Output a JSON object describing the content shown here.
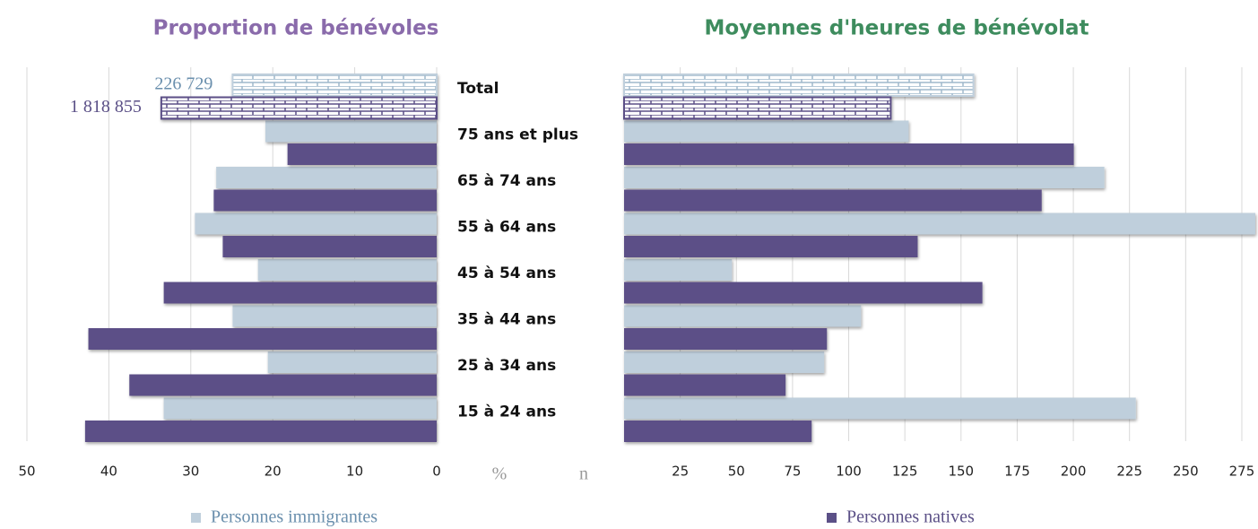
{
  "chart_data": [
    {
      "type": "bar",
      "orientation": "horizontal",
      "title": "Proportion de bénévoles",
      "title_color": "#8a6bab",
      "x_label": "%",
      "x_reversed": true,
      "xlim": [
        0,
        50
      ],
      "xticks": [
        50,
        40,
        30,
        20,
        10,
        0
      ],
      "grid": true,
      "categories": [
        "Total",
        "75 ans et plus",
        "65 à 74 ans",
        "55 à 64 ans",
        "45 à 54 ans",
        "35 à 44 ans",
        "25 à 34 ans",
        "15 à 24 ans"
      ],
      "pattern_index": 0,
      "annotations": [
        "226 729",
        "1 818 855"
      ],
      "series": [
        {
          "name": "Personnes immigrantes",
          "color": "#bfcfdc",
          "values": [
            24.9,
            20.9,
            26.9,
            29.5,
            21.8,
            24.9,
            20.6,
            33.3
          ]
        },
        {
          "name": "Personnes natives",
          "color": "#5b5087",
          "values": [
            33.6,
            18.2,
            27.2,
            26.1,
            33.3,
            42.5,
            37.5,
            42.9
          ]
        }
      ],
      "legend_series": 0
    },
    {
      "type": "bar",
      "orientation": "horizontal",
      "title": "Moyennes d'heures de bénévolat",
      "title_color": "#3e8c5e",
      "x_label": "n",
      "x_reversed": false,
      "xlim": [
        0,
        281
      ],
      "xticks": [
        25,
        50,
        75,
        100,
        125,
        150,
        175,
        200,
        225,
        250,
        275
      ],
      "grid": true,
      "pattern_index": 0,
      "series": [
        {
          "name": "Personnes immigrantes",
          "color": "#bfcfdc",
          "values": [
            155.5,
            126.7,
            213.8,
            281,
            48,
            105.5,
            89.1,
            227.8
          ]
        },
        {
          "name": "Personnes natives",
          "color": "#5b5087",
          "values": [
            118.7,
            200.2,
            185.9,
            130.7,
            159.5,
            90.3,
            71.9,
            83.5
          ]
        }
      ],
      "legend_series": 1
    }
  ]
}
